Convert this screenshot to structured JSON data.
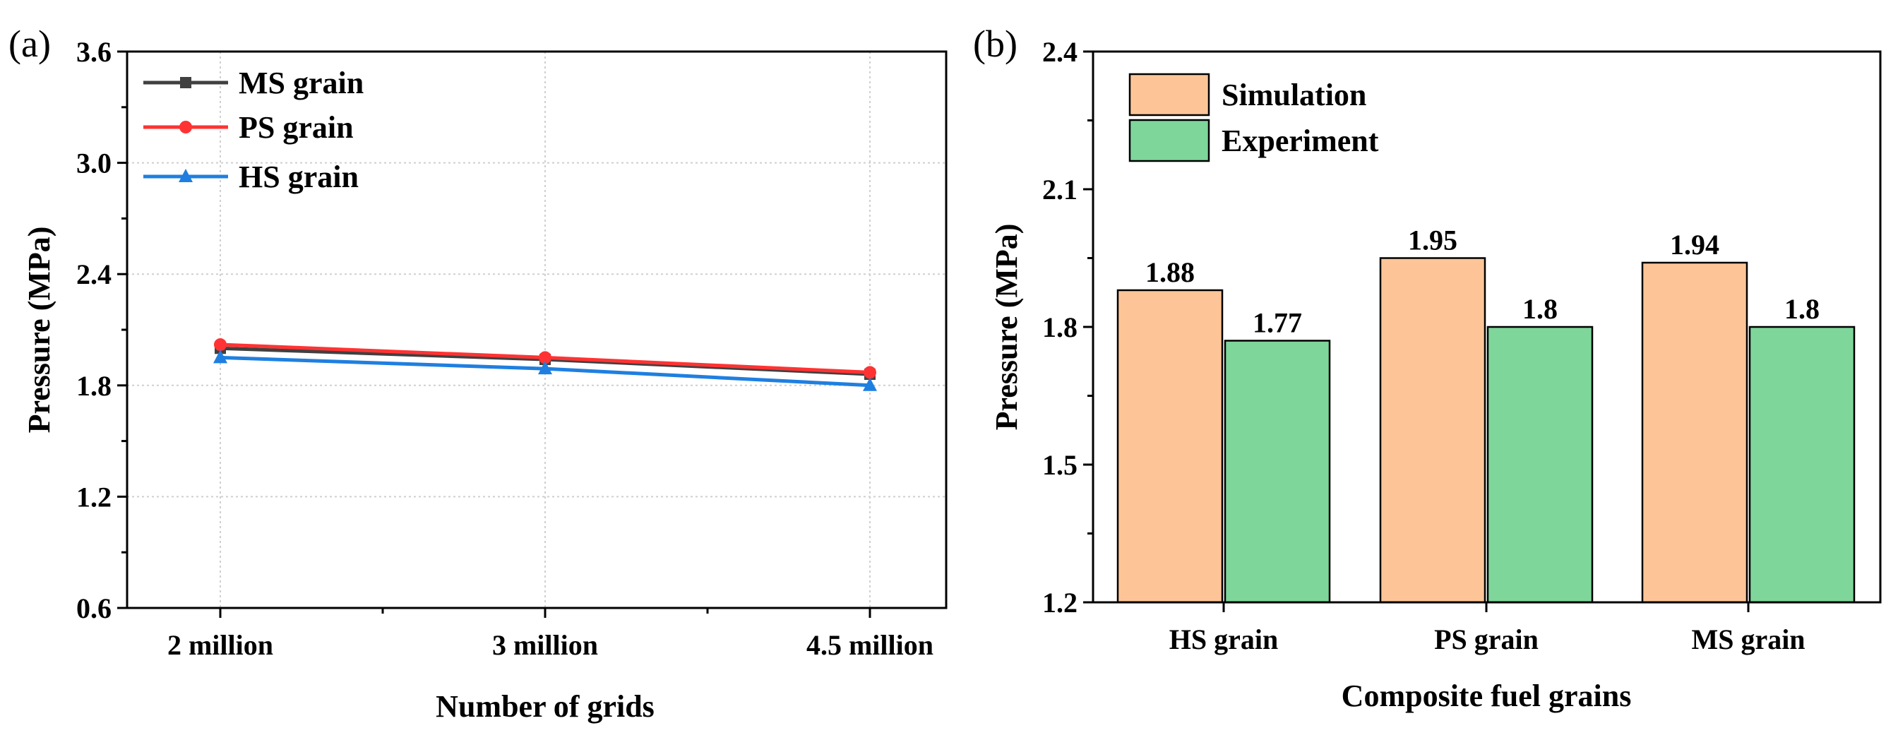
{
  "chart_data": [
    {
      "panel": "(a)",
      "type": "line",
      "title": "",
      "xlabel": "Number of grids",
      "ylabel": "Pressure (MPa)",
      "categories": [
        "2 million",
        "3 million",
        "4.5 million"
      ],
      "ylim": [
        0.6,
        3.6
      ],
      "yticks": [
        "0.6",
        "1.2",
        "1.8",
        "2.4",
        "3.0",
        "3.6"
      ],
      "grid": true,
      "legend_position": "top-left",
      "series": [
        {
          "name": "MS grain",
          "marker": "square",
          "color": "#404040",
          "values": [
            2.0,
            1.94,
            1.86
          ]
        },
        {
          "name": "PS  grain",
          "marker": "circle",
          "color": "#ff3333",
          "values": [
            2.02,
            1.95,
            1.87
          ]
        },
        {
          "name": "HS grain",
          "marker": "triangle",
          "color": "#1f7fe0",
          "values": [
            1.95,
            1.89,
            1.8
          ]
        }
      ]
    },
    {
      "panel": "(b)",
      "type": "bar",
      "title": "",
      "xlabel": "Composite fuel grains",
      "ylabel": "Pressure (MPa)",
      "categories": [
        "HS grain",
        "PS grain",
        "MS grain"
      ],
      "ylim": [
        1.2,
        2.4
      ],
      "yticks": [
        "1.2",
        "1.5",
        "1.8",
        "2.1",
        "2.4"
      ],
      "grid": false,
      "legend_position": "top-left",
      "series": [
        {
          "name": "Simulation",
          "color": "#fdc597",
          "values": [
            1.88,
            1.95,
            1.94
          ],
          "labels": [
            "1.88",
            "1.95",
            "1.94"
          ]
        },
        {
          "name": "Experiment",
          "color": "#7ed69a",
          "values": [
            1.77,
            1.8,
            1.8
          ],
          "labels": [
            "1.77",
            "1.8",
            "1.8"
          ]
        }
      ]
    }
  ]
}
